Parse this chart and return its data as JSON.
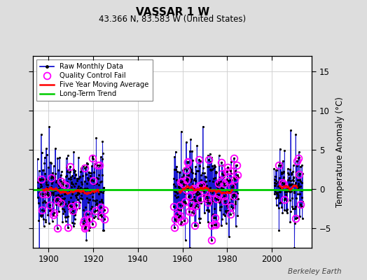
{
  "title": "VASSAR 1 W",
  "subtitle": "43.366 N, 83.583 W (United States)",
  "ylabel": "Temperature Anomaly (°C)",
  "watermark": "Berkeley Earth",
  "background_color": "#dddddd",
  "plot_bg_color": "#ffffff",
  "ylim": [
    -7.5,
    17
  ],
  "xlim": [
    1893,
    2018
  ],
  "yticks": [
    -5,
    0,
    5,
    10,
    15
  ],
  "xticks": [
    1900,
    1920,
    1940,
    1960,
    1980,
    2000
  ],
  "grid_color": "#cccccc",
  "raw_color": "#0000cc",
  "qc_color": "#ff00ff",
  "ma_color": "#ff0000",
  "trend_color": "#00cc00",
  "period1_start": 1895,
  "period1_end": 1925,
  "period2_start": 1956,
  "period2_end": 1985,
  "period3_start": 2001,
  "period3_end": 2014
}
